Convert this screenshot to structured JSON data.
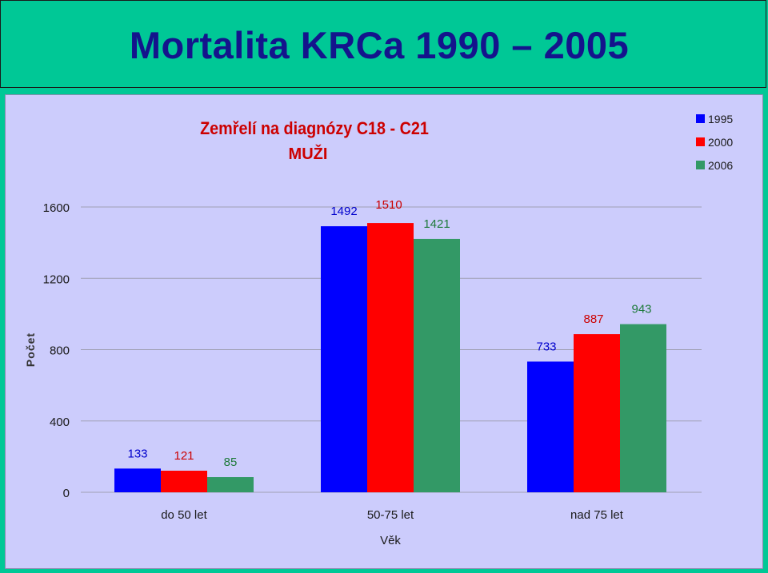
{
  "page": {
    "title": "Mortalita KRCa 1990 – 2005"
  },
  "chart_data": {
    "type": "bar",
    "title": "Zemřelí na diagnózy C18 - C21",
    "subtitle": "MUŽI",
    "xlabel": "Věk",
    "ylabel": "Počet",
    "categories": [
      "do 50 let",
      "50-75 let",
      "nad 75 let"
    ],
    "series": [
      {
        "name": "1995",
        "color": "#0000ff",
        "values": [
          133,
          1492,
          733
        ]
      },
      {
        "name": "2000",
        "color": "#ff0000",
        "values": [
          121,
          1510,
          887
        ]
      },
      {
        "name": "2006",
        "color": "#339966",
        "values": [
          85,
          1421,
          943
        ]
      }
    ],
    "ylim": [
      0,
      1600
    ],
    "yticks": [
      0,
      400,
      800,
      1200,
      1600
    ],
    "grid": true,
    "legend_position": "top-right",
    "colors": {
      "title": "#cc0000",
      "axis_text": "#1a1a1a",
      "ylabel": "#333333"
    }
  }
}
